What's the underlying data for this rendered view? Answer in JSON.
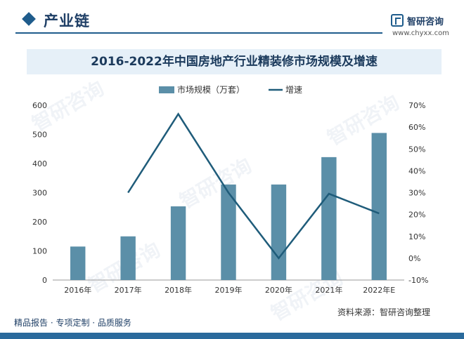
{
  "header": {
    "title": "产业链",
    "logo_name": "智研咨询",
    "logo_url": "www.chyxx.com"
  },
  "watermark_text": "智研咨询",
  "footer": {
    "left_text": "精品报告 · 专项定制 · 品质服务",
    "source": "资料来源：智研咨询整理"
  },
  "colors": {
    "bar": "#5b8fa8",
    "line": "#1f5c7a",
    "accent": "#1f5c8c",
    "title_band": "#e6f0f8"
  },
  "chart_data": {
    "type": "bar",
    "title": "2016-2022年中国房地产行业精装修市场规模及增速",
    "categories": [
      "2016年",
      "2017年",
      "2018年",
      "2019年",
      "2020年",
      "2021年",
      "2022年E"
    ],
    "series": [
      {
        "name": "市场规模（万套）",
        "type": "bar",
        "axis": "left",
        "values": [
          115,
          150,
          253,
          328,
          328,
          422,
          505
        ]
      },
      {
        "name": "增速",
        "type": "line",
        "axis": "right",
        "values": [
          null,
          30,
          66,
          30,
          0,
          29.5,
          20.5
        ]
      }
    ],
    "left_axis": {
      "ylim": [
        0,
        600
      ],
      "ticks": [
        0,
        100,
        200,
        300,
        400,
        500,
        600
      ]
    },
    "right_axis": {
      "ylim": [
        -10,
        70
      ],
      "ticks": [
        -10,
        0,
        10,
        20,
        30,
        40,
        50,
        60,
        70
      ],
      "tick_labels": [
        "-10%",
        "0%",
        "10%",
        "20%",
        "30%",
        "40%",
        "50%",
        "60%",
        "70%"
      ]
    },
    "legend_position": "top-center",
    "grid": false
  }
}
